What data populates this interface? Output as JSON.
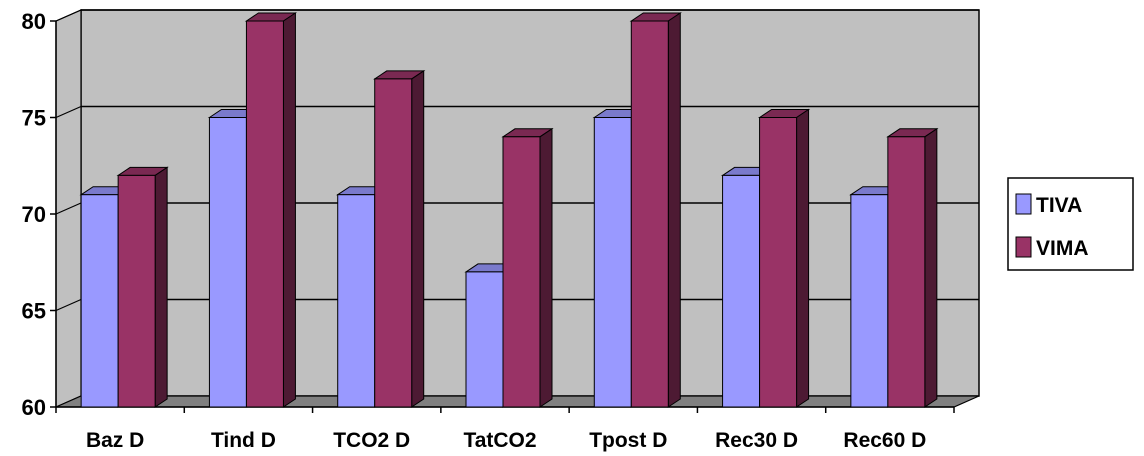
{
  "chart_data": {
    "type": "bar",
    "categories": [
      "Baz D",
      "Tind D",
      "TCO2 D",
      "TatCO2",
      "Tpost D",
      "Rec30 D",
      "Rec60 D"
    ],
    "series": [
      {
        "name": "TIVA",
        "values": [
          71,
          75,
          71,
          67,
          75,
          72,
          71
        ]
      },
      {
        "name": "VIMA",
        "values": [
          72,
          80,
          77,
          74,
          80,
          75,
          74
        ]
      }
    ],
    "ylim": [
      60,
      80
    ],
    "yticks": [
      60,
      65,
      70,
      75,
      80
    ],
    "ytick_labels": [
      "60",
      "65",
      "70",
      "75",
      "80"
    ],
    "grid": true,
    "legend_position": "right",
    "style": "3d-clustered-column"
  },
  "colors": {
    "TIVA": {
      "front": "#9999ff",
      "side": "#4d4d80",
      "top": "#7a7acc"
    },
    "VIMA": {
      "front": "#993366",
      "side": "#4d1a33",
      "top": "#7a2952"
    },
    "wall": "#c0c0c0",
    "floor": "#808080",
    "grid": "#000000"
  }
}
